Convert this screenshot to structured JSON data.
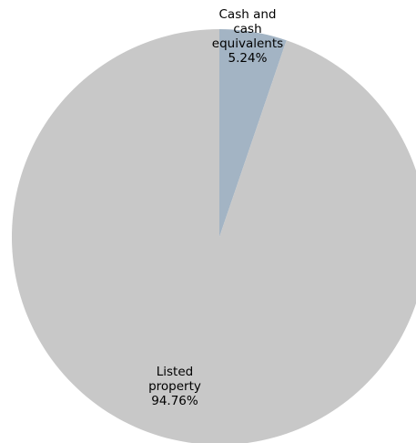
{
  "chart_data": {
    "type": "pie",
    "start_angle": "12 o'clock",
    "direction": "clockwise",
    "legend": "none",
    "slices": [
      {
        "category": "Cash and cash equivalents",
        "value": 5.24,
        "label_lines": [
          "Cash and",
          "cash",
          "equivalents",
          "5.24%"
        ],
        "color": "#a3b4c4"
      },
      {
        "category": "Listed property",
        "value": 94.76,
        "label_lines": [
          "Listed",
          "property",
          "94.76%"
        ],
        "color": "#c8c8c8"
      }
    ]
  }
}
